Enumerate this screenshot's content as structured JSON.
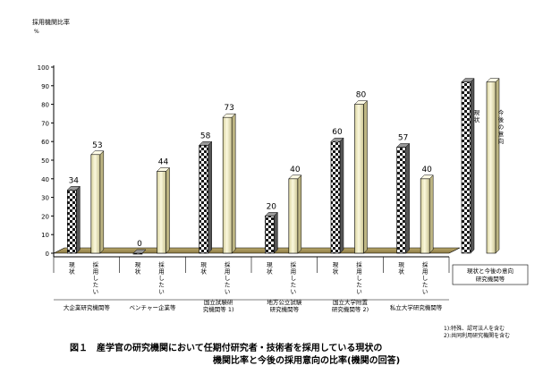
{
  "caption": {
    "line1": "図１　産学官の研究機関において任期付研究者・技術者を採用している現状の",
    "line2": "機関比率と今後の採用意向の比率(機関の回答)"
  },
  "notes": [
    "1):特殊、認可法人を含む",
    "2):共同利用研究機関を含む"
  ],
  "colors": {
    "current": "checker-black-white",
    "future": "#f5f1c8"
  },
  "chart_data": {
    "type": "bar",
    "ylabel": "採用機関比率",
    "yunit": "%",
    "ylim": [
      0,
      100
    ],
    "ytick_step": 10,
    "bar_labels": [
      "現状",
      "採用したい"
    ],
    "categories": [
      {
        "name": "大企業研究機関等",
        "current": 34,
        "future": 53
      },
      {
        "name": "ベンチャー企業等",
        "current": 0,
        "future": 44
      },
      {
        "name": "国立試験研究機関等 1)",
        "current": 58,
        "future": 73
      },
      {
        "name": "地方公立試験研究機関等",
        "current": 20,
        "future": 40
      },
      {
        "name": "国立大学附置研究機関等 2)",
        "current": 60,
        "future": 80
      },
      {
        "name": "私立大学研究機関等",
        "current": 57,
        "future": 40
      }
    ],
    "legend": {
      "current_label": "現状",
      "future_label": "今後の意向",
      "box_label": "現状と今後の意向",
      "box_label2": "研究機関等"
    }
  }
}
